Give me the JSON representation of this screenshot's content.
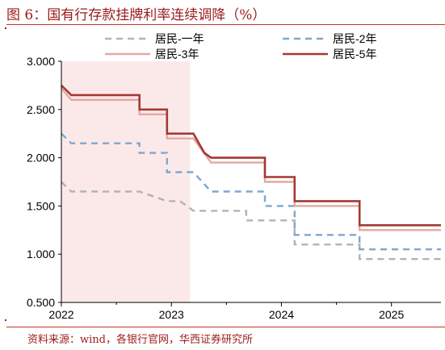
{
  "header": {
    "title": "图 6：国有行存款挂牌利率连续调降（%）"
  },
  "footer": {
    "source": "资料来源：wind，各银行官网，华西证券研究所"
  },
  "colors": {
    "accent": "#c0392b",
    "shade": "#fbe9ea",
    "y1": "#b3b3b3",
    "y2": "#7fa6cf",
    "y3": "#e2a9a2",
    "y5": "#a43a33"
  },
  "chart_data": {
    "type": "line",
    "step": true,
    "xlim": [
      2022.0,
      2025.45
    ],
    "ylim": [
      0.5,
      3.0
    ],
    "x_ticks": [
      "2022",
      "2023",
      "2024",
      "2025"
    ],
    "y_ticks": [
      "0.500",
      "1.000",
      "1.500",
      "2.000",
      "2.500",
      "3.000"
    ],
    "grid": false,
    "legend_position": "top",
    "shaded_range": [
      2022.0,
      2023.17
    ],
    "series": [
      {
        "name": "居民-一年",
        "style": "dashed",
        "color": "#b3b3b3",
        "points": [
          [
            2022.0,
            1.75
          ],
          [
            2022.09,
            1.65
          ],
          [
            2022.71,
            1.65
          ],
          [
            2022.71,
            1.65
          ],
          [
            2022.96,
            1.55
          ],
          [
            2023.08,
            1.55
          ],
          [
            2023.2,
            1.45
          ],
          [
            2023.68,
            1.45
          ],
          [
            2023.68,
            1.35
          ],
          [
            2024.12,
            1.35
          ],
          [
            2024.12,
            1.1
          ],
          [
            2024.71,
            1.1
          ],
          [
            2024.71,
            0.95
          ],
          [
            2025.45,
            0.95
          ]
        ]
      },
      {
        "name": "居民-2年",
        "style": "dashed",
        "color": "#7fa6cf",
        "points": [
          [
            2022.0,
            2.25
          ],
          [
            2022.09,
            2.15
          ],
          [
            2022.71,
            2.15
          ],
          [
            2022.71,
            2.05
          ],
          [
            2022.96,
            2.05
          ],
          [
            2022.96,
            1.85
          ],
          [
            2023.2,
            1.85
          ],
          [
            2023.36,
            1.65
          ],
          [
            2023.85,
            1.65
          ],
          [
            2023.85,
            1.5
          ],
          [
            2024.12,
            1.5
          ],
          [
            2024.12,
            1.2
          ],
          [
            2024.71,
            1.2
          ],
          [
            2024.71,
            1.05
          ],
          [
            2025.45,
            1.05
          ]
        ]
      },
      {
        "name": "居民-3年",
        "style": "solid",
        "color": "#e2a9a2",
        "points": [
          [
            2022.0,
            2.72
          ],
          [
            2022.09,
            2.6
          ],
          [
            2022.71,
            2.6
          ],
          [
            2022.71,
            2.45
          ],
          [
            2022.96,
            2.45
          ],
          [
            2022.96,
            2.2
          ],
          [
            2023.2,
            2.2
          ],
          [
            2023.36,
            1.95
          ],
          [
            2023.85,
            1.95
          ],
          [
            2023.85,
            1.75
          ],
          [
            2024.12,
            1.75
          ],
          [
            2024.12,
            1.5
          ],
          [
            2024.71,
            1.5
          ],
          [
            2024.71,
            1.25
          ],
          [
            2025.45,
            1.25
          ]
        ]
      },
      {
        "name": "居民-5年",
        "style": "solid",
        "color": "#a43a33",
        "points": [
          [
            2022.0,
            2.75
          ],
          [
            2022.09,
            2.65
          ],
          [
            2022.71,
            2.65
          ],
          [
            2022.71,
            2.5
          ],
          [
            2022.96,
            2.5
          ],
          [
            2022.96,
            2.25
          ],
          [
            2023.2,
            2.25
          ],
          [
            2023.3,
            2.05
          ],
          [
            2023.36,
            2.0
          ],
          [
            2023.85,
            2.0
          ],
          [
            2023.85,
            1.8
          ],
          [
            2024.12,
            1.8
          ],
          [
            2024.12,
            1.55
          ],
          [
            2024.71,
            1.55
          ],
          [
            2024.71,
            1.3
          ],
          [
            2025.45,
            1.3
          ]
        ]
      }
    ]
  }
}
